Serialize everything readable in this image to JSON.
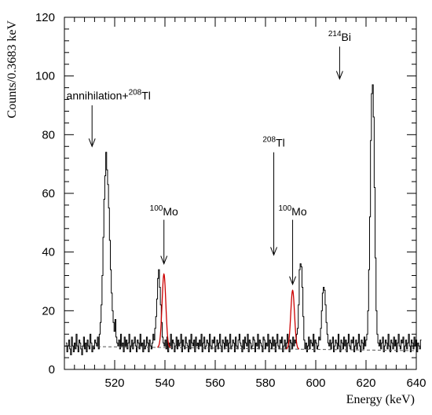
{
  "chart_data": {
    "type": "line",
    "xlabel": "Energy (keV)",
    "ylabel": "Counts/0.3683 keV",
    "xlim": [
      500,
      640
    ],
    "ylim": [
      0,
      120
    ],
    "x_ticks": [
      520,
      540,
      560,
      580,
      600,
      620,
      640
    ],
    "y_ticks": [
      0,
      20,
      40,
      60,
      80,
      100,
      120
    ],
    "grid": false,
    "legend": "none",
    "colors": {
      "histogram": "#000000",
      "fit": "#cc0000",
      "background": "#555555"
    },
    "series": [
      {
        "kind": "histogram",
        "bin_width": 0.3683,
        "x_start": 500.6,
        "counts": [
          9,
          6,
          8,
          10,
          7,
          5,
          11,
          8,
          6,
          9,
          7,
          12,
          8,
          6,
          10,
          9,
          7,
          5,
          8,
          11,
          7,
          9,
          6,
          10,
          8,
          7,
          12,
          9,
          6,
          8,
          7,
          10,
          9,
          8,
          11,
          7,
          12,
          16,
          22,
          32,
          45,
          58,
          66,
          74,
          68,
          63,
          55,
          44,
          34,
          26,
          20,
          16,
          13,
          17,
          11,
          9,
          8,
          10,
          7,
          12,
          8,
          9,
          6,
          11,
          8,
          10,
          7,
          9,
          12,
          6,
          8,
          10,
          7,
          9,
          11,
          8,
          6,
          10,
          9,
          7,
          12,
          8,
          9,
          6,
          10,
          7,
          8,
          11,
          9,
          6,
          10,
          8,
          7,
          9,
          12,
          10,
          14,
          18,
          24,
          31,
          34,
          28,
          22,
          16,
          11,
          9,
          8,
          10,
          7,
          11,
          6,
          9,
          8,
          12,
          7,
          10,
          9,
          6,
          8,
          11,
          7,
          10,
          8,
          9,
          12,
          6,
          10,
          8,
          7,
          11,
          9,
          8,
          6,
          10,
          7,
          12,
          9,
          8,
          10,
          6,
          11,
          8,
          9,
          7,
          10,
          8,
          12,
          6,
          9,
          11,
          7,
          8,
          10,
          9,
          6,
          12,
          8,
          7,
          10,
          9,
          11,
          6,
          8,
          10,
          7,
          9,
          12,
          8,
          6,
          10,
          9,
          7,
          11,
          8,
          10,
          6,
          9,
          12,
          7,
          8,
          10,
          9,
          6,
          11,
          8,
          7,
          10,
          12,
          9,
          8,
          6,
          10,
          7,
          11,
          9,
          8,
          12,
          6,
          10,
          9,
          7,
          8,
          11,
          10,
          6,
          9,
          8,
          12,
          7,
          10,
          9,
          8,
          6,
          11,
          10,
          7,
          9,
          8,
          12,
          6,
          10,
          9,
          7,
          11,
          8,
          10,
          6,
          9,
          12,
          8,
          7,
          10,
          9,
          11,
          6,
          8,
          10,
          7,
          9,
          12,
          8,
          6,
          10,
          9,
          7,
          11,
          8,
          10,
          9,
          12,
          14,
          22,
          34,
          36,
          35,
          28,
          18,
          10,
          7,
          9,
          6,
          8,
          11,
          7,
          10,
          9,
          8,
          12,
          6,
          10,
          9,
          7,
          8,
          11,
          10,
          14,
          20,
          26,
          28,
          27,
          22,
          16,
          12,
          9,
          8,
          10,
          7,
          9,
          11,
          6,
          8,
          10,
          9,
          7,
          12,
          8,
          6,
          10,
          9,
          7,
          11,
          8,
          10,
          6,
          9,
          12,
          8,
          7,
          10,
          9,
          11,
          6,
          8,
          10,
          7,
          9,
          12,
          8,
          6,
          10,
          9,
          7,
          11,
          8,
          10,
          12,
          20,
          34,
          52,
          78,
          94,
          97,
          86,
          62,
          38,
          20,
          12,
          9,
          8,
          10,
          7,
          9,
          11,
          6,
          8,
          10,
          9,
          7,
          12,
          8,
          6,
          10,
          9,
          7,
          11,
          8,
          10,
          6,
          9,
          12,
          8,
          7,
          10,
          9,
          11,
          6,
          8,
          10,
          7,
          9,
          12,
          8,
          6,
          10,
          9,
          7,
          11,
          8,
          10,
          6,
          9,
          8,
          7,
          10
        ]
      },
      {
        "kind": "fit",
        "name": "",
        "centers": [
          539.6,
          590.8
        ],
        "amplitudes": [
          25,
          20
        ],
        "sigma": 0.75,
        "range_halfwidth": 2.6
      },
      {
        "kind": "baseline",
        "name": "",
        "y": [
          7.9,
          6.4
        ]
      }
    ],
    "annotations": [
      {
        "label": "annihilation+",
        "sup": "208",
        "suffix": "Tl",
        "x": 511,
        "arrow_tip_y": 76,
        "arrow_tail_y": 90,
        "label_y": 92
      },
      {
        "label": "",
        "sup": "100",
        "suffix": "Mo",
        "x": 539.6,
        "arrow_tip_y": 36,
        "arrow_tail_y": 51,
        "label_y": 52.5
      },
      {
        "label": "",
        "sup": "208",
        "suffix": "Tl",
        "x": 583.3,
        "arrow_tip_y": 39,
        "arrow_tail_y": 74,
        "label_y": 76
      },
      {
        "label": "",
        "sup": "100",
        "suffix": "Mo",
        "x": 590.8,
        "arrow_tip_y": 29,
        "arrow_tail_y": 51,
        "label_y": 52.5
      },
      {
        "label": "",
        "sup": "214",
        "suffix": "Bi",
        "x": 609.5,
        "arrow_tip_y": 99,
        "arrow_tail_y": 110,
        "label_y": 112
      }
    ]
  }
}
